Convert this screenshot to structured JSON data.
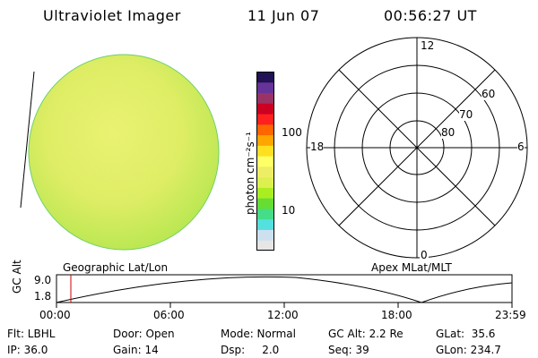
{
  "header": {
    "instrument": "Ultraviolet Imager",
    "date": "11 Jun 07",
    "time": "00:56:27 UT"
  },
  "colorbar": {
    "unit_label": "photon cm⁻²s⁻¹",
    "tick_100": "100",
    "tick_10": "10",
    "colors": [
      "#e6e6e6",
      "#cce0f0",
      "#55e0e0",
      "#44dd88",
      "#66dd33",
      "#aaee22",
      "#ddf050",
      "#eeee66",
      "#ffff66",
      "#ffe020",
      "#ffa500",
      "#ff6600",
      "#ff2020",
      "#cc0020",
      "#993366",
      "#663399",
      "#221155"
    ]
  },
  "polar_plot": {
    "label_12": "12",
    "label_6": "6",
    "label_18": "18",
    "label_0": "0",
    "label_60": "60",
    "label_70": "70",
    "label_80": "80"
  },
  "timeline": {
    "axis_label": "GC Alt",
    "ymax": "9.0",
    "ymin": "1.8",
    "left_label": "Geographic Lat/Lon",
    "right_label": "Apex MLat/MLT",
    "ticks": [
      "00:00",
      "06:00",
      "12:00",
      "18:00",
      "23:59"
    ],
    "marker_color": "#cc0000"
  },
  "info": {
    "flt": "Flt: LBHL",
    "ip": "IP: 36.0",
    "door": "Door: Open",
    "gain": "Gain: 14",
    "mode": "Mode: Normal",
    "dsp": "Dsp:     2.0",
    "gcalt": "GC Alt: 2.2 Re",
    "seq": "Seq: 39",
    "glat": "GLat:  35.6",
    "glon": "GLon: 234.7"
  }
}
